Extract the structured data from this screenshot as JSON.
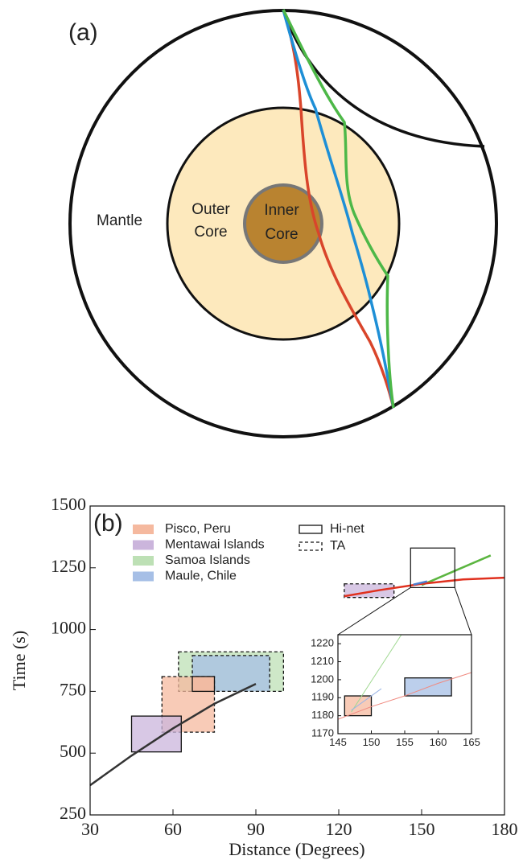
{
  "diagram": {
    "label": "(a)",
    "mantle": "Mantle",
    "outer_core": [
      "Outer",
      "Core"
    ],
    "inner_core": [
      "Inner",
      "Core"
    ]
  },
  "chart_data": {
    "type": "line",
    "label": "(b)",
    "x_label": "Distance (Degrees)",
    "y_label": "Time (s)",
    "xlim": [
      30,
      180
    ],
    "xticks": [
      30,
      60,
      90,
      120,
      150,
      180
    ],
    "ylim": [
      250,
      1500
    ],
    "yticks": [
      250,
      500,
      750,
      1000,
      1250,
      1500
    ],
    "events": [
      {
        "name": "Pisco, Peru",
        "color": "#f5b99f"
      },
      {
        "name": "Mentawai Islands",
        "color": "#cbb5dc"
      },
      {
        "name": "Samoa Islands",
        "color": "#bde0b5"
      },
      {
        "name": "Maule, Chile",
        "color": "#a6bfe6"
      }
    ],
    "networks": [
      {
        "name": "Hi-net",
        "dashed": false
      },
      {
        "name": "TA",
        "dashed": true
      }
    ],
    "boxes": [
      {
        "event": "Samoa Islands",
        "network": "TA",
        "x": [
          62,
          100
        ],
        "y": [
          750,
          910
        ]
      },
      {
        "event": "Maule, Chile",
        "network": "TA",
        "x": [
          67,
          95
        ],
        "y": [
          750,
          895
        ]
      },
      {
        "event": "Pisco, Peru",
        "network": "TA",
        "x": [
          56,
          75
        ],
        "y": [
          585,
          810
        ]
      },
      {
        "event": "Mentawai Islands",
        "network": "Hi-net",
        "x": [
          45,
          63
        ],
        "y": [
          505,
          650
        ]
      },
      {
        "event": "Pisco, Peru",
        "network": "Hi-net",
        "x": [
          67,
          75
        ],
        "y": [
          750,
          810
        ]
      },
      {
        "event": "Mentawai Islands",
        "network": "TA",
        "x": [
          122,
          140
        ],
        "y": [
          1130,
          1185
        ]
      }
    ],
    "curves": [
      {
        "color": "#333333",
        "x": [
          30,
          45,
          60,
          75,
          90
        ],
        "y": [
          370,
          490,
          600,
          700,
          780
        ]
      },
      {
        "color": "#5bb540",
        "x": [
          150,
          175
        ],
        "y": [
          1180,
          1300
        ]
      },
      {
        "color": "#e0301e",
        "x": [
          122,
          135,
          150,
          165,
          180
        ],
        "y": [
          1135,
          1160,
          1185,
          1203,
          1210
        ]
      },
      {
        "color": "#4a7fd0",
        "x": [
          147,
          152
        ],
        "y": [
          1182,
          1195
        ]
      }
    ],
    "zoom_box": {
      "x": [
        146,
        162
      ],
      "y": [
        1170,
        1330
      ]
    },
    "inset": {
      "xlim": [
        145,
        165
      ],
      "xticks": [
        145,
        150,
        155,
        160,
        165
      ],
      "ylim": [
        1170,
        1225
      ],
      "yticks": [
        1170,
        1180,
        1190,
        1200,
        1210,
        1220
      ],
      "boxes": [
        {
          "event": "Pisco, Peru",
          "network": "Hi-net",
          "x": [
            146,
            150
          ],
          "y": [
            1180,
            1191
          ]
        },
        {
          "event": "Maule, Chile",
          "network": "Hi-net",
          "x": [
            155,
            162
          ],
          "y": [
            1191,
            1201
          ]
        }
      ],
      "curves": [
        {
          "color": "#9fd890",
          "x": [
            147,
            154.5
          ],
          "y": [
            1182,
            1225
          ]
        },
        {
          "color": "#f08a80",
          "x": [
            145,
            150,
            155,
            160,
            165
          ],
          "y": [
            1178,
            1185,
            1191,
            1198,
            1204
          ]
        },
        {
          "color": "#9bb5e6",
          "x": [
            147,
            151.5
          ],
          "y": [
            1183,
            1195
          ]
        }
      ]
    }
  }
}
